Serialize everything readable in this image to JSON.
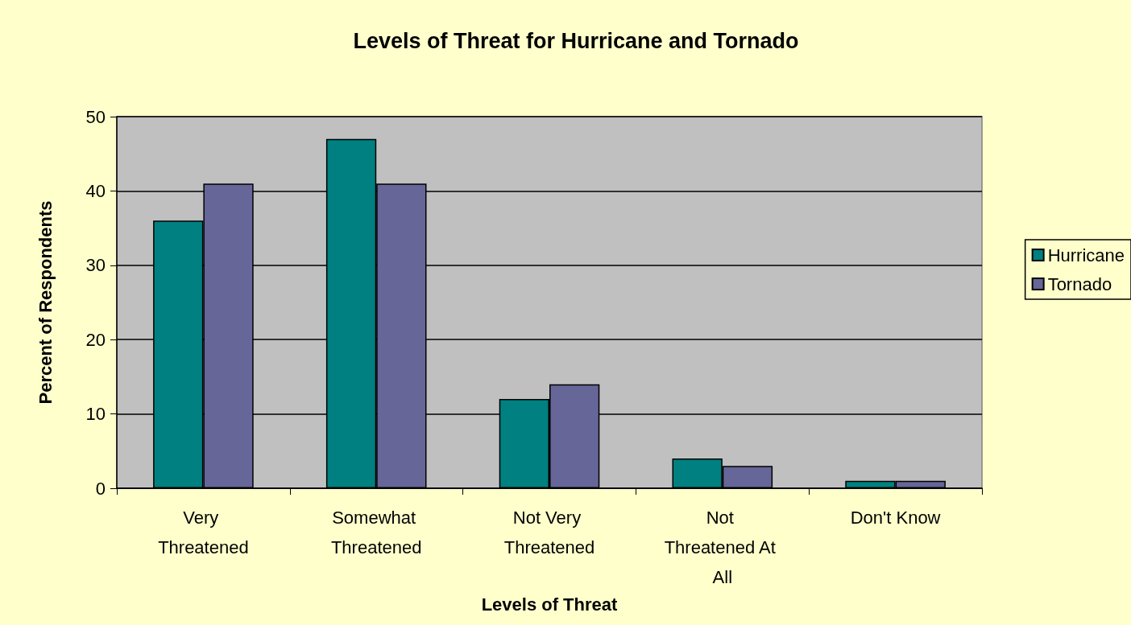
{
  "chart_data": {
    "type": "bar",
    "title": "Levels of Threat for Hurricane and Tornado",
    "xlabel": "Levels of Threat",
    "ylabel": "Percent of Respondents",
    "categories": [
      "Very Threatened",
      "Somewhat Threatened",
      "Not Very Threatened",
      "Not Threatened At All",
      "Don't Know"
    ],
    "series": [
      {
        "name": "Hurricane",
        "color": "#008080",
        "values": [
          36,
          47,
          12,
          4,
          1
        ]
      },
      {
        "name": "Tornado",
        "color": "#666699",
        "values": [
          41,
          41,
          14,
          3,
          1
        ]
      }
    ],
    "ylim": [
      0,
      50
    ],
    "yticks": [
      0,
      10,
      20,
      30,
      40,
      50
    ],
    "grid": "y",
    "legend": "right"
  }
}
